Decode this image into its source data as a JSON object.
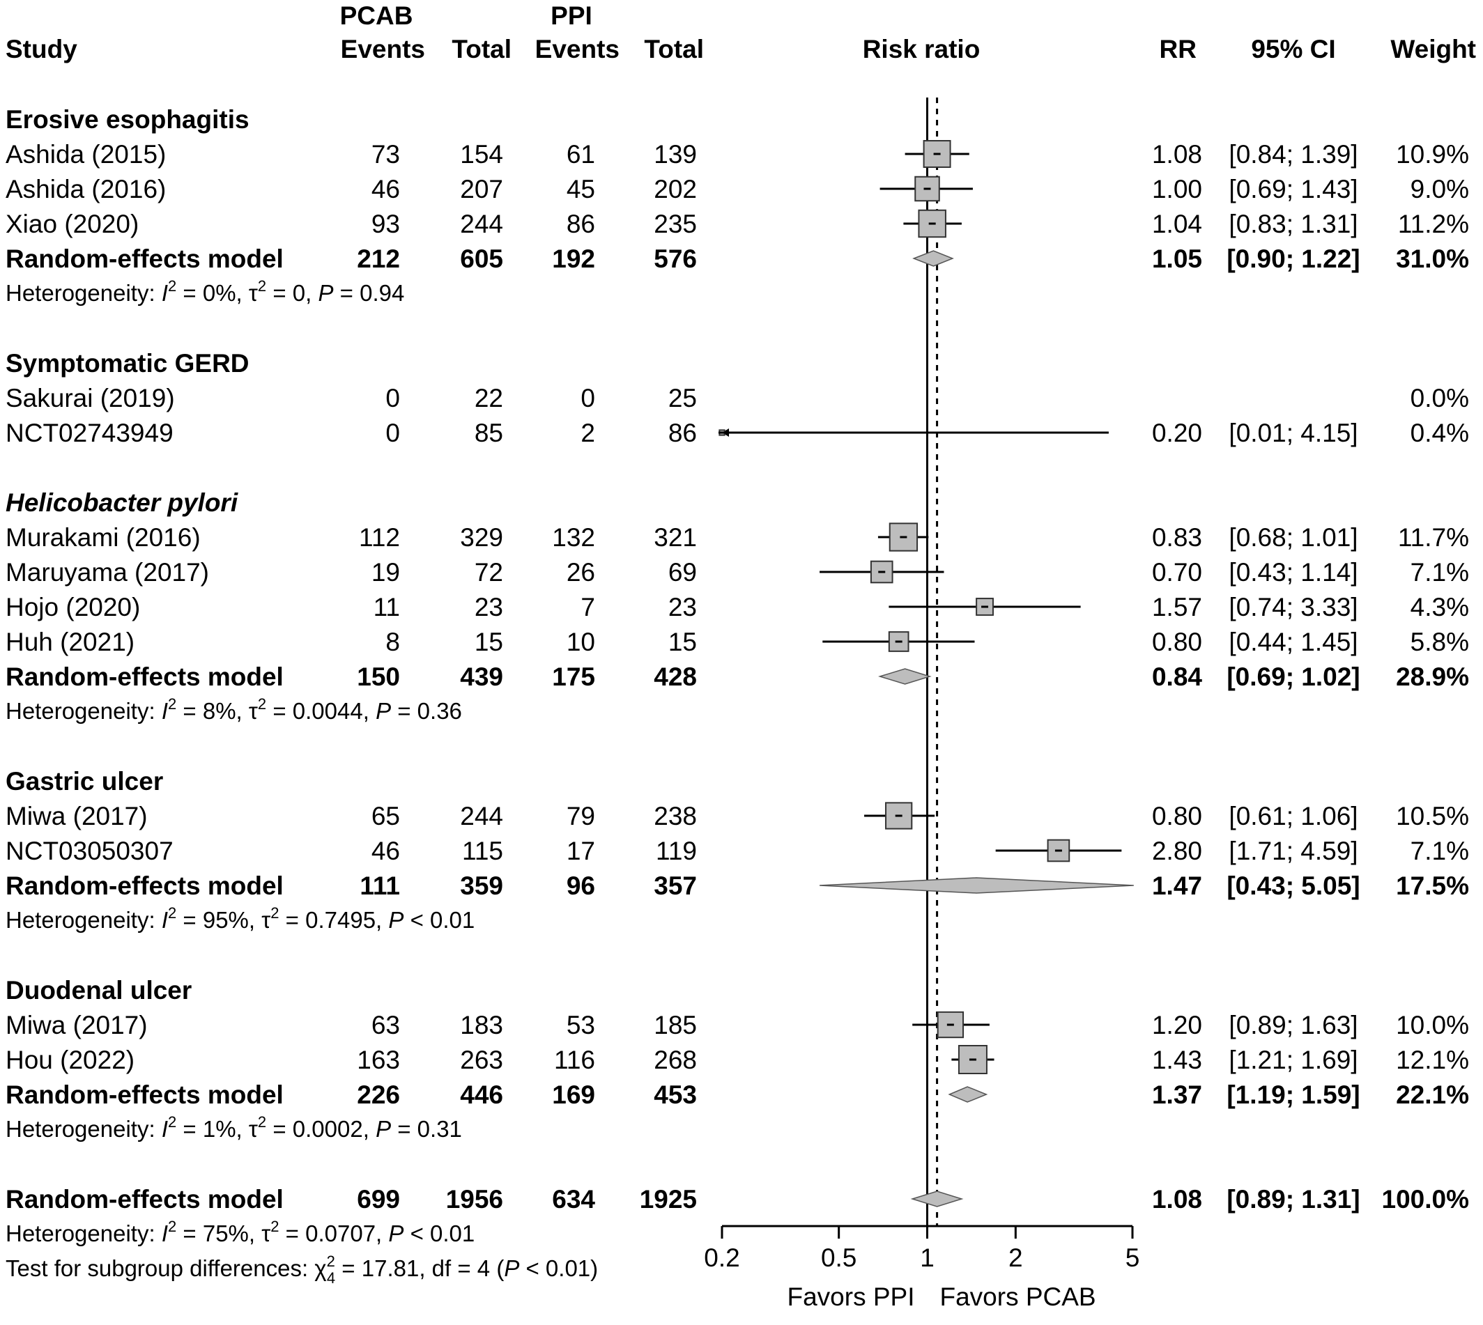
{
  "chart_data": {
    "type": "forest",
    "header": {
      "group1": "PCAB",
      "group2": "PPI",
      "study": "Study",
      "events": "Events",
      "total": "Total",
      "plot_title": "Risk ratio",
      "rr": "RR",
      "ci": "95% CI",
      "weight": "Weight"
    },
    "x_axis": {
      "scale": "log",
      "range": [
        0.2,
        5
      ],
      "ticks": [
        "0.2",
        "0.5",
        "1",
        "2",
        "5"
      ],
      "reference": 1,
      "overall_effect_line": 1.08,
      "favors_left": "Favors PPI",
      "favors_right": "Favors PCAB"
    },
    "rows": [
      {
        "type": "group",
        "label": "Erosive esophagitis",
        "italic": false
      },
      {
        "type": "study",
        "label": "Ashida (2015)",
        "e1": "73",
        "n1": "154",
        "e2": "61",
        "n2": "139",
        "rr": 1.08,
        "lo": 0.84,
        "hi": 1.39,
        "rr_text": "1.08",
        "ci_text": "[0.84; 1.39]",
        "weight": "10.9%",
        "w": 10.9
      },
      {
        "type": "study",
        "label": "Ashida (2016)",
        "e1": "46",
        "n1": "207",
        "e2": "45",
        "n2": "202",
        "rr": 1.0,
        "lo": 0.69,
        "hi": 1.43,
        "rr_text": "1.00",
        "ci_text": "[0.69; 1.43]",
        "weight": "9.0%",
        "w": 9.0
      },
      {
        "type": "study",
        "label": "Xiao (2020)",
        "e1": "93",
        "n1": "244",
        "e2": "86",
        "n2": "235",
        "rr": 1.04,
        "lo": 0.83,
        "hi": 1.31,
        "rr_text": "1.04",
        "ci_text": "[0.83; 1.31]",
        "weight": "11.2%",
        "w": 11.2
      },
      {
        "type": "model",
        "label": "Random-effects model",
        "e1": "212",
        "n1": "605",
        "e2": "192",
        "n2": "576",
        "rr": 1.05,
        "lo": 0.9,
        "hi": 1.22,
        "rr_text": "1.05",
        "ci_text": "[0.90; 1.22]",
        "weight": "31.0%"
      },
      {
        "type": "het",
        "i2": "0%",
        "tau2": "0",
        "p": "= 0.94"
      },
      {
        "type": "gap"
      },
      {
        "type": "group",
        "label": "Symptomatic GERD",
        "italic": false
      },
      {
        "type": "study",
        "label": "Sakurai (2019)",
        "e1": "0",
        "n1": "22",
        "e2": "0",
        "n2": "25",
        "rr": null,
        "lo": null,
        "hi": null,
        "rr_text": "",
        "ci_text": "",
        "weight": "0.0%",
        "w": 0
      },
      {
        "type": "study",
        "label": "NCT02743949",
        "e1": "0",
        "n1": "85",
        "e2": "2",
        "n2": "86",
        "rr": 0.2,
        "lo": 0.01,
        "hi": 4.15,
        "rr_text": "0.20",
        "ci_text": "[0.01; 4.15]",
        "weight": "0.4%",
        "w": 0.4
      },
      {
        "type": "gap"
      },
      {
        "type": "group",
        "label": "Helicobacter pylori",
        "italic": true
      },
      {
        "type": "study",
        "label": "Murakami (2016)",
        "e1": "112",
        "n1": "329",
        "e2": "132",
        "n2": "321",
        "rr": 0.83,
        "lo": 0.68,
        "hi": 1.01,
        "rr_text": "0.83",
        "ci_text": "[0.68; 1.01]",
        "weight": "11.7%",
        "w": 11.7
      },
      {
        "type": "study",
        "label": "Maruyama (2017)",
        "e1": "19",
        "n1": "72",
        "e2": "26",
        "n2": "69",
        "rr": 0.7,
        "lo": 0.43,
        "hi": 1.14,
        "rr_text": "0.70",
        "ci_text": "[0.43; 1.14]",
        "weight": "7.1%",
        "w": 7.1
      },
      {
        "type": "study",
        "label": "Hojo (2020)",
        "e1": "11",
        "n1": "23",
        "e2": "7",
        "n2": "23",
        "rr": 1.57,
        "lo": 0.74,
        "hi": 3.33,
        "rr_text": "1.57",
        "ci_text": "[0.74; 3.33]",
        "weight": "4.3%",
        "w": 4.3
      },
      {
        "type": "study",
        "label": "Huh (2021)",
        "e1": "8",
        "n1": "15",
        "e2": "10",
        "n2": "15",
        "rr": 0.8,
        "lo": 0.44,
        "hi": 1.45,
        "rr_text": "0.80",
        "ci_text": "[0.44; 1.45]",
        "weight": "5.8%",
        "w": 5.8
      },
      {
        "type": "model",
        "label": "Random-effects model",
        "e1": "150",
        "n1": "439",
        "e2": "175",
        "n2": "428",
        "rr": 0.84,
        "lo": 0.69,
        "hi": 1.02,
        "rr_text": "0.84",
        "ci_text": "[0.69; 1.02]",
        "weight": "28.9%"
      },
      {
        "type": "het",
        "i2": "8%",
        "tau2": "0.0044",
        "p": "= 0.36"
      },
      {
        "type": "gap"
      },
      {
        "type": "group",
        "label": "Gastric ulcer",
        "italic": false
      },
      {
        "type": "study",
        "label": "Miwa (2017)",
        "e1": "65",
        "n1": "244",
        "e2": "79",
        "n2": "238",
        "rr": 0.8,
        "lo": 0.61,
        "hi": 1.06,
        "rr_text": "0.80",
        "ci_text": "[0.61; 1.06]",
        "weight": "10.5%",
        "w": 10.5
      },
      {
        "type": "study",
        "label": "NCT03050307",
        "e1": "46",
        "n1": "115",
        "e2": "17",
        "n2": "119",
        "rr": 2.8,
        "lo": 1.71,
        "hi": 4.59,
        "rr_text": "2.80",
        "ci_text": "[1.71; 4.59]",
        "weight": "7.1%",
        "w": 7.1
      },
      {
        "type": "model",
        "label": "Random-effects model",
        "e1": "111",
        "n1": "359",
        "e2": "96",
        "n2": "357",
        "rr": 1.47,
        "lo": 0.43,
        "hi": 5.05,
        "rr_text": "1.47",
        "ci_text": "[0.43; 5.05]",
        "weight": "17.5%"
      },
      {
        "type": "het",
        "i2": "95%",
        "tau2": "0.7495",
        "p": "< 0.01"
      },
      {
        "type": "gap"
      },
      {
        "type": "group",
        "label": "Duodenal ulcer",
        "italic": false
      },
      {
        "type": "study",
        "label": "Miwa (2017)",
        "e1": "63",
        "n1": "183",
        "e2": "53",
        "n2": "185",
        "rr": 1.2,
        "lo": 0.89,
        "hi": 1.63,
        "rr_text": "1.20",
        "ci_text": "[0.89; 1.63]",
        "weight": "10.0%",
        "w": 10.0
      },
      {
        "type": "study",
        "label": "Hou (2022)",
        "e1": "163",
        "n1": "263",
        "e2": "116",
        "n2": "268",
        "rr": 1.43,
        "lo": 1.21,
        "hi": 1.69,
        "rr_text": "1.43",
        "ci_text": "[1.21; 1.69]",
        "weight": "12.1%",
        "w": 12.1
      },
      {
        "type": "model",
        "label": "Random-effects model",
        "e1": "226",
        "n1": "446",
        "e2": "169",
        "n2": "453",
        "rr": 1.37,
        "lo": 1.19,
        "hi": 1.59,
        "rr_text": "1.37",
        "ci_text": "[1.19; 1.59]",
        "weight": "22.1%"
      },
      {
        "type": "het",
        "i2": "1%",
        "tau2": "0.0002",
        "p": "= 0.31"
      },
      {
        "type": "gap"
      },
      {
        "type": "model",
        "label": "Random-effects model",
        "e1": "699",
        "n1": "1956",
        "e2": "634",
        "n2": "1925",
        "rr": 1.08,
        "lo": 0.89,
        "hi": 1.31,
        "rr_text": "1.08",
        "ci_text": "[0.89; 1.31]",
        "weight": "100.0%"
      },
      {
        "type": "het",
        "i2": "75%",
        "tau2": "0.0707",
        "p": "< 0.01"
      },
      {
        "type": "subgroup_test",
        "prefix": "Test for subgroup differences:",
        "chi2": "17.81",
        "df": "4",
        "chi_df": "4",
        "p": "< 0.01"
      }
    ]
  }
}
